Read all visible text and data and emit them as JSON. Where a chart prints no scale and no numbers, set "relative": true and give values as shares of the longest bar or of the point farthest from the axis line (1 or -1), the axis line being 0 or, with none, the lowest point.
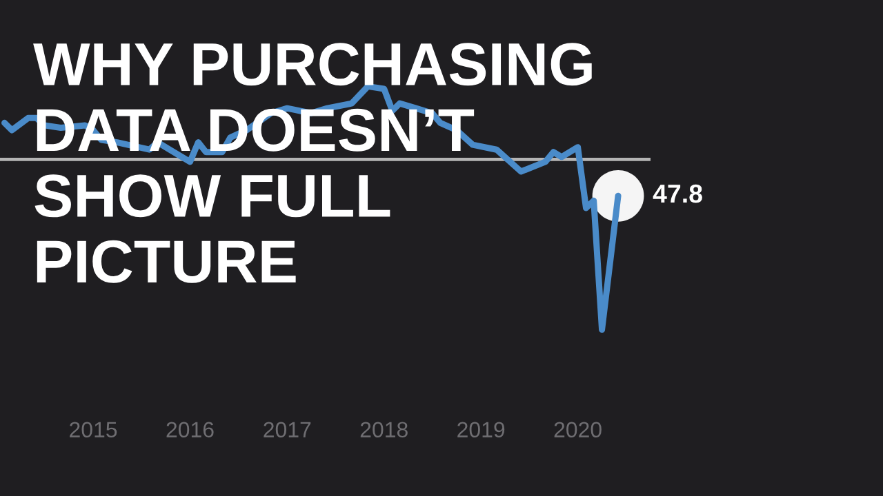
{
  "chart_data": {
    "type": "line",
    "relative": true,
    "title": "WHY PURCHASING\nDATA DOESN’T\nSHOW FULL\nPICTURE",
    "x": [
      "2014-02",
      "2014-03",
      "2014-05",
      "2014-06",
      "2014-07",
      "2014-09",
      "2014-12",
      "2015-01",
      "2015-02",
      "2015-04",
      "2015-08",
      "2015-09",
      "2016-01",
      "2016-02",
      "2016-03",
      "2016-05",
      "2016-06",
      "2016-08",
      "2016-11",
      "2017-01",
      "2017-04",
      "2017-06",
      "2017-09",
      "2017-11",
      "2018-01",
      "2018-02",
      "2018-03",
      "2018-05",
      "2018-07",
      "2018-08",
      "2018-10",
      "2018-12",
      "2019-03",
      "2019-06",
      "2019-09",
      "2019-10",
      "2019-11",
      "2020-01",
      "2020-02",
      "2020-03",
      "2020-04",
      "2020-06"
    ],
    "series": [
      {
        "color": "#4a8bc9",
        "values": [
          0.85,
          0.82,
          0.87,
          0.87,
          0.84,
          0.83,
          0.84,
          0.82,
          0.78,
          0.77,
          0.74,
          0.77,
          0.69,
          0.77,
          0.73,
          0.73,
          0.79,
          0.82,
          0.89,
          0.91,
          0.89,
          0.91,
          0.93,
          1,
          0.99,
          0.9,
          0.93,
          0.91,
          0.89,
          0.85,
          0.82,
          0.76,
          0.74,
          0.65,
          0.69,
          0.73,
          0.71,
          0.75,
          0.5,
          0.53,
          0,
          0.55
        ]
      }
    ],
    "annotations": [
      {
        "text": "47.8",
        "x": "2020-06",
        "y": 0.55
      }
    ],
    "xlim": [
      "2014-01-15",
      "2020-10-01"
    ],
    "xticks": [
      {
        "value": "2015",
        "label": "2015"
      },
      {
        "value": "2016",
        "label": "2016"
      },
      {
        "value": "2017",
        "label": "2017"
      },
      {
        "value": "2018",
        "label": "2018"
      },
      {
        "value": "2019",
        "label": "2019"
      },
      {
        "value": "2020",
        "label": "2020"
      }
    ],
    "tick_labels": "x",
    "marker": "none",
    "line_style": "solid",
    "ref_lines": [
      {
        "axis": "y",
        "value": 0.7,
        "color": "#b4b4b4"
      }
    ]
  }
}
